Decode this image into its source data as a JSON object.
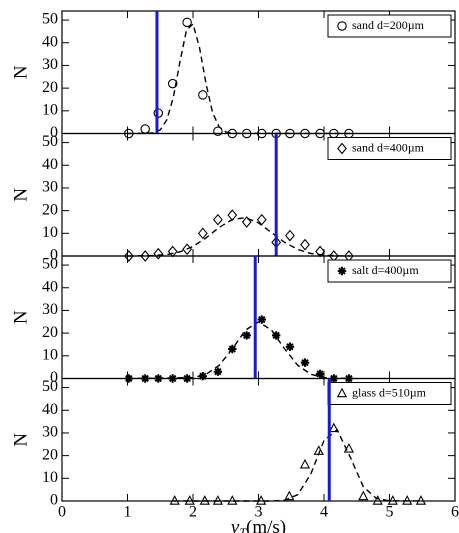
{
  "chart_data": [
    {
      "type": "scatter",
      "ylabel": "N",
      "ylim": [
        0,
        54
      ],
      "yticks": [
        0,
        10,
        20,
        30,
        40,
        50
      ],
      "xlim": [
        0,
        6
      ],
      "xticks": [
        0,
        1,
        2,
        3,
        4,
        5,
        6
      ],
      "vline": 1.45,
      "vline_color": "#1a1ad6",
      "series": [
        {
          "name": "sand d=200µm",
          "marker": "circle",
          "color": "#000000",
          "x": [
            1.02,
            1.27,
            1.47,
            1.69,
            1.91,
            2.15,
            2.38,
            2.6,
            2.82,
            3.05,
            3.27,
            3.48,
            3.71,
            3.94,
            4.15,
            4.38
          ],
          "values": [
            0,
            2,
            9,
            22,
            49,
            17,
            1,
            0,
            0,
            0,
            0,
            0,
            0,
            0,
            0,
            0
          ]
        },
        {
          "type": "line",
          "dashed": true,
          "color": "#000000",
          "x": [
            1.0,
            1.3,
            1.4,
            1.5,
            1.6,
            1.7,
            1.8,
            1.9,
            2.0,
            2.1,
            2.2,
            2.3,
            2.4,
            2.5,
            2.6,
            4.4
          ],
          "values": [
            0,
            0.1,
            0.3,
            1.6,
            6,
            16,
            31.5,
            45.5,
            48.3,
            37.8,
            21.8,
            9.1,
            2.9,
            0.7,
            0.1,
            0
          ]
        }
      ]
    },
    {
      "type": "scatter",
      "ylabel": "N",
      "ylim": [
        0,
        54
      ],
      "yticks": [
        0,
        10,
        20,
        30,
        40,
        50
      ],
      "xlim": [
        0,
        6
      ],
      "xticks": [
        0,
        1,
        2,
        3,
        4,
        5,
        6
      ],
      "vline": 3.27,
      "vline_color": "#1a1ad6",
      "series": [
        {
          "name": "sand d=400µm",
          "marker": "diamond",
          "color": "#000000",
          "x": [
            1.02,
            1.27,
            1.47,
            1.69,
            1.91,
            2.15,
            2.38,
            2.6,
            2.82,
            3.05,
            3.27,
            3.48,
            3.71,
            3.94,
            4.15,
            4.38
          ],
          "values": [
            0,
            0,
            1,
            2,
            3,
            10,
            16,
            18,
            15,
            16,
            6,
            9,
            5,
            2,
            0,
            0
          ]
        },
        {
          "type": "line",
          "dashed": true,
          "color": "#000000",
          "x": [
            1.0,
            1.4,
            1.6,
            1.8,
            2.0,
            2.2,
            2.4,
            2.6,
            2.8,
            3.0,
            3.2,
            3.4,
            3.6,
            3.8,
            4.0,
            4.2,
            4.4
          ],
          "values": [
            0,
            0.2,
            0.65,
            1.8,
            4.2,
            8,
            12.6,
            16.1,
            16.9,
            14.6,
            10.3,
            6,
            2.9,
            1.1,
            0.36,
            0.09,
            0
          ]
        }
      ]
    },
    {
      "type": "scatter",
      "ylabel": "N",
      "ylim": [
        0,
        54
      ],
      "yticks": [
        0,
        10,
        20,
        30,
        40,
        50
      ],
      "xlim": [
        0,
        6
      ],
      "xticks": [
        0,
        1,
        2,
        3,
        4,
        5,
        6
      ],
      "vline": 2.95,
      "vline_color": "#1a1ad6",
      "series": [
        {
          "name": "salt d=400µm",
          "marker": "star",
          "color": "#000000",
          "x": [
            1.02,
            1.27,
            1.47,
            1.69,
            1.91,
            2.15,
            2.38,
            2.6,
            2.82,
            3.05,
            3.27,
            3.48,
            3.71,
            3.94,
            4.15,
            4.38
          ],
          "values": [
            0,
            0,
            0,
            0,
            0,
            1,
            3,
            13,
            19,
            26,
            19,
            14,
            7,
            2,
            0,
            0
          ]
        },
        {
          "type": "line",
          "dashed": true,
          "color": "#000000",
          "x": [
            1.0,
            2.0,
            2.2,
            2.4,
            2.6,
            2.8,
            3.0,
            3.2,
            3.4,
            3.6,
            3.8,
            4.0,
            4.4
          ],
          "values": [
            0,
            0.4,
            1.85,
            5.8,
            13,
            21.3,
            25,
            21.3,
            13,
            5.8,
            1.85,
            0.4,
            0
          ]
        }
      ]
    },
    {
      "type": "scatter",
      "ylabel": "N",
      "ylim": [
        0,
        54
      ],
      "yticks": [
        0,
        10,
        20,
        30,
        40,
        50
      ],
      "xlim": [
        0,
        6
      ],
      "xticks": [
        0,
        1,
        2,
        3,
        4,
        5,
        6
      ],
      "show_xticklabels": true,
      "xlabel": {
        "symbol": "v",
        "subscript": "T",
        "unit": "(m/s)"
      },
      "vline": 4.08,
      "vline_color": "#1a1ad6",
      "series": [
        {
          "name": "glass d=510µm",
          "marker": "triangle",
          "color": "#000000",
          "x": [
            1.72,
            1.95,
            2.18,
            2.38,
            2.6,
            3.04,
            3.47,
            3.71,
            3.92,
            4.15,
            4.38,
            4.6,
            4.82,
            5.05,
            5.27,
            5.48
          ],
          "values": [
            0,
            0,
            0,
            0,
            0,
            0,
            2,
            16,
            22,
            32,
            23,
            2,
            0,
            0,
            0,
            0
          ]
        },
        {
          "type": "line",
          "dashed": true,
          "color": "#000000",
          "x": [
            1.7,
            3.2,
            3.4,
            3.6,
            3.8,
            4.0,
            4.2,
            4.4,
            4.6,
            4.8,
            5.0,
            5.5
          ],
          "values": [
            0,
            0,
            0.36,
            2.8,
            12,
            26.7,
            31.4,
            19.4,
            6.3,
            1.1,
            0.1,
            0
          ]
        }
      ]
    }
  ]
}
